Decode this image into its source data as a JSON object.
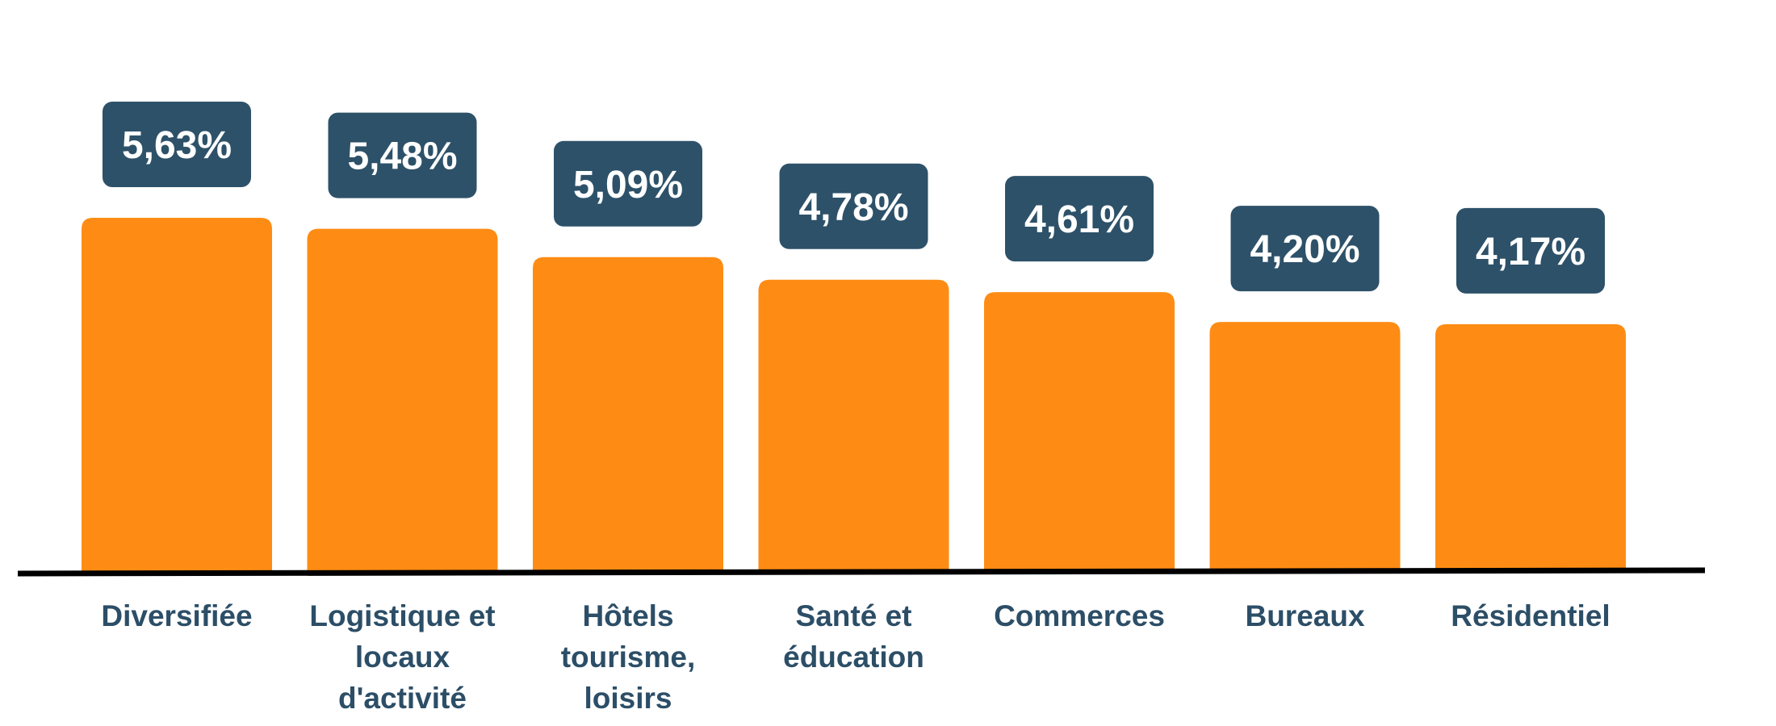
{
  "chart_data": {
    "type": "bar",
    "title": "",
    "xlabel": "",
    "ylabel": "",
    "categories": [
      [
        "Diversifiée"
      ],
      [
        "Logistique et",
        "locaux",
        "d'activité"
      ],
      [
        "Hôtels",
        "tourisme,",
        "loisirs"
      ],
      [
        "Santé et",
        "éducation"
      ],
      [
        "Commerces"
      ],
      [
        "Bureaux"
      ],
      [
        "Résidentiel"
      ]
    ],
    "values": [
      5.63,
      5.48,
      5.09,
      4.78,
      4.61,
      4.2,
      4.17
    ],
    "data_labels": [
      "5,63%",
      "5,48%",
      "5,09%",
      "4,78%",
      "4,61%",
      "4,20%",
      "4,17%"
    ],
    "grid": false,
    "legend": "none",
    "colors": {
      "bar": "#fe8c14",
      "label_box": "#2d5169",
      "label_text": "#ffffff",
      "category_text": "#2c4e67",
      "axis": "#000000"
    }
  }
}
